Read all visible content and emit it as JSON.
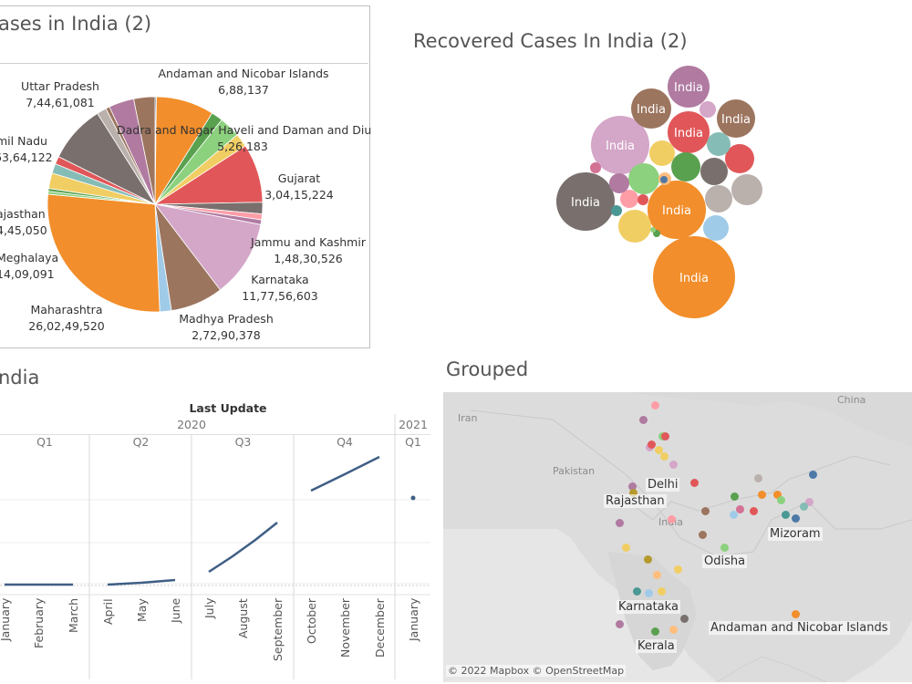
{
  "pie_panel": {
    "title": "ases in India (2)",
    "labels": [
      {
        "name": "Andaman and Nicobar Islands",
        "value": "6,88,137"
      },
      {
        "name": "Uttar Pradesh",
        "value": "7,44,61,081"
      },
      {
        "name": "mil Nadu",
        "value": "63,64,122"
      },
      {
        "name": "Dadra and Nagar Haveli and Daman and Diu",
        "value": "5,26,183"
      },
      {
        "name": "Gujarat",
        "value": "3,04,15,224"
      },
      {
        "name": "ajasthan",
        "value": "4,45,050"
      },
      {
        "name": "Jammu and Kashmir",
        "value": "1,48,30,526"
      },
      {
        "name": "Meghalaya",
        "value": "14,09,091"
      },
      {
        "name": "Karnataka",
        "value": "11,77,56,603"
      },
      {
        "name": "Maharashtra",
        "value": "26,02,49,520"
      },
      {
        "name": "Madhya Pradesh",
        "value": "2,72,90,378"
      }
    ]
  },
  "bubble_panel": {
    "title": "Recovered Cases In India (2)",
    "bubble_label": "India"
  },
  "line_panel": {
    "title": "ndia",
    "header": "Last Update",
    "year_2020": "2020",
    "year_2021": "2021",
    "quarters": [
      "Q1",
      "Q2",
      "Q3",
      "Q4",
      "Q1"
    ],
    "months": [
      "January",
      "February",
      "March",
      "April",
      "May",
      "June",
      "July",
      "August",
      "September",
      "October",
      "November",
      "December",
      "January"
    ]
  },
  "map_panel": {
    "title": "Grouped",
    "country_labels": [
      "Iran",
      "Pakistan",
      "China",
      "India"
    ],
    "place_labels": [
      "Delhi",
      "Rajasthan",
      "Mizoram",
      "Odisha",
      "Karnataka",
      "Andaman and Nicobar Islands",
      "Kerala"
    ],
    "attribution": "© 2022 Mapbox © OpenStreetMap"
  },
  "chart_data": [
    {
      "type": "pie",
      "title": "ases in India (2)",
      "categories": [
        "Maharashtra",
        "Madhya Pradesh",
        "Karnataka",
        "Jammu and Kashmir",
        "Gujarat",
        "Dadra and Nagar Haveli and Daman and Diu",
        "Andaman and Nicobar Islands",
        "Uttar Pradesh",
        "mil Nadu",
        "ajasthan",
        "Meghalaya"
      ],
      "values": [
        260249520,
        27290378,
        117756603,
        14830526,
        30415224,
        526183,
        688137,
        74461081,
        6364122,
        445050,
        1409091
      ],
      "colors": [
        "#f28e2b",
        "#9c755f",
        "#d4a6c8",
        "#ff9da7",
        "#e15759",
        "#59a14f",
        "#4e79a7",
        "#b07aa1",
        "#bab0ac",
        "#86bcb6",
        "#f1ce63"
      ]
    },
    {
      "type": "scatter",
      "title": "Recovered Cases In India (2)",
      "note": "packed bubbles, each labelled India where large enough"
    },
    {
      "type": "line",
      "title": "ndia",
      "x": [
        "January",
        "February",
        "March",
        "April",
        "May",
        "June",
        "July",
        "August",
        "September",
        "October",
        "November",
        "December",
        "January"
      ],
      "grid": true
    }
  ]
}
